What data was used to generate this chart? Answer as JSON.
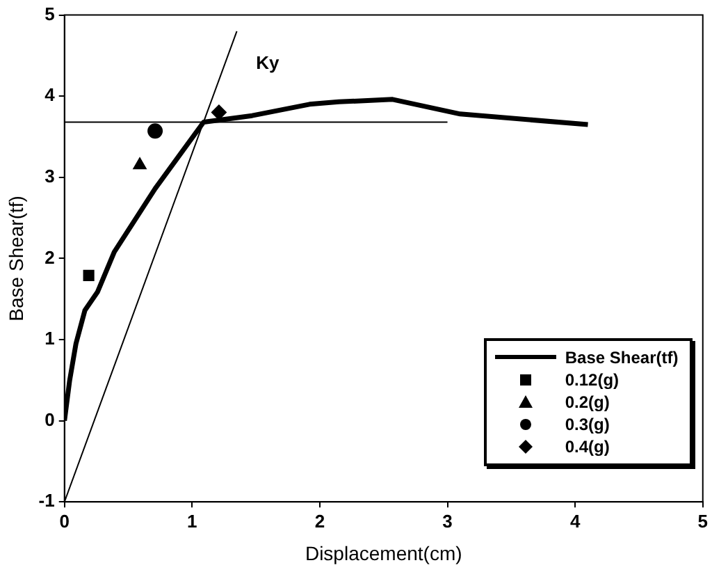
{
  "chart_data": {
    "type": "line",
    "xlabel": "Displacement(cm)",
    "ylabel": "Base Shear(tf)",
    "xlim": [
      0,
      5
    ],
    "xticks": [
      0,
      1,
      2,
      3,
      4,
      5
    ],
    "ylim": [
      -1,
      5
    ],
    "yticks": [
      -1,
      0,
      1,
      2,
      3,
      4,
      5
    ],
    "grid": false,
    "legend": "bottom right",
    "annotations": [
      "Ky"
    ],
    "series": [
      {
        "name": "Base Shear(tf)",
        "color": "#000000",
        "marker": "none",
        "x": [
          0,
          0.04,
          0.09,
          0.16,
          0.26,
          0.39,
          0.71,
          1.09,
          1.47,
          1.92,
          2.15,
          2.57,
          3.1,
          4.1
        ],
        "values": [
          0,
          0.49,
          0.95,
          1.36,
          1.59,
          2.08,
          2.86,
          3.68,
          3.76,
          3.9,
          3.93,
          3.96,
          3.78,
          3.65
        ]
      },
      {
        "name": "0.12(g)",
        "type": "scatter",
        "color": "#000000",
        "marker": "square",
        "x": [
          0.19
        ],
        "values": [
          1.79
        ]
      },
      {
        "name": "0.2(g)",
        "type": "scatter",
        "color": "#000000",
        "marker": "triangle",
        "x": [
          0.59
        ],
        "values": [
          3.15
        ]
      },
      {
        "name": "0.3(g)",
        "type": "scatter",
        "color": "#000000",
        "marker": "circle",
        "x": [
          0.71
        ],
        "values": [
          3.57
        ]
      },
      {
        "name": "0.4(g)",
        "type": "scatter",
        "color": "#000000",
        "marker": "diamond",
        "x": [
          1.21
        ],
        "values": [
          3.8
        ]
      },
      {
        "color": "#000000",
        "marker": "none",
        "x": [
          0,
          1.35
        ],
        "values": [
          -1,
          4.8
        ]
      },
      {
        "color": "#000000",
        "marker": "none",
        "x": [
          0,
          3.0
        ],
        "values": [
          3.68,
          3.68
        ]
      }
    ]
  }
}
